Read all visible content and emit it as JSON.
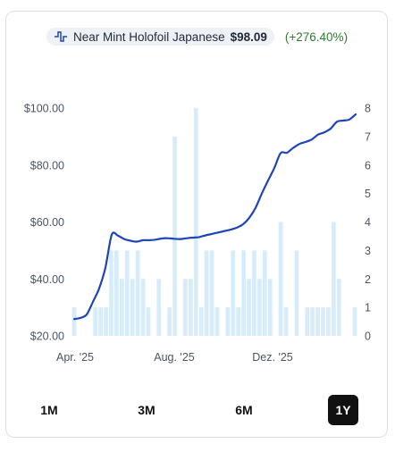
{
  "legend": {
    "icon": "pulse-line-icon",
    "name": "Near Mint Holofoil Japanese",
    "price": "$98.09",
    "change": "(+276.40%)"
  },
  "colors": {
    "line": "#1e44b8",
    "bar": "#d6ecfb",
    "change": "#2e7d32"
  },
  "ranges": [
    {
      "label": "1M",
      "active": false
    },
    {
      "label": "3M",
      "active": false
    },
    {
      "label": "6M",
      "active": false
    },
    {
      "label": "1Y",
      "active": true
    }
  ],
  "chart_data": {
    "type": "line",
    "x_ticks": [
      "Apr. '25",
      "Aug. '25",
      "Dez. '25"
    ],
    "y_left": {
      "ylim": [
        20,
        100
      ],
      "ticks": [
        "$100.00",
        "$80.00",
        "$60.00",
        "$40.00",
        "$20.00"
      ]
    },
    "y_right": {
      "ylim": [
        0,
        8
      ],
      "ticks": [
        "8",
        "7",
        "6",
        "5",
        "4",
        "3",
        "2",
        "1",
        "0"
      ]
    },
    "grid": false,
    "series": [
      {
        "type": "line",
        "axis": "left",
        "values": [
          25.9,
          26.3,
          27.5,
          32,
          36.7,
          44,
          55.5,
          55.2,
          54,
          53.4,
          53.1,
          53.6,
          53.6,
          53.8,
          54.2,
          54.3,
          54.1,
          54,
          54.3,
          54.5,
          54.7,
          55.3,
          55.8,
          56.3,
          56.8,
          57.3,
          58,
          59.2,
          61.5,
          65,
          70,
          74.6,
          79,
          84.2,
          84.3,
          86,
          87.4,
          88.1,
          89,
          90.7,
          91.5,
          92.8,
          95.2,
          95.6,
          96,
          97.8
        ]
      },
      {
        "type": "bar",
        "axis": "right",
        "values": [
          1,
          0,
          0,
          0,
          1,
          1,
          1,
          3,
          3,
          2,
          3,
          2,
          3,
          2,
          1,
          0,
          2,
          0,
          1,
          7,
          0,
          2,
          2,
          8,
          1,
          3,
          3,
          1,
          0,
          1,
          3,
          1,
          3,
          2,
          3,
          2,
          3,
          2,
          0,
          4,
          1,
          0,
          3,
          0,
          1,
          1,
          1,
          1,
          1,
          4,
          2,
          0,
          0,
          1
        ]
      }
    ]
  }
}
